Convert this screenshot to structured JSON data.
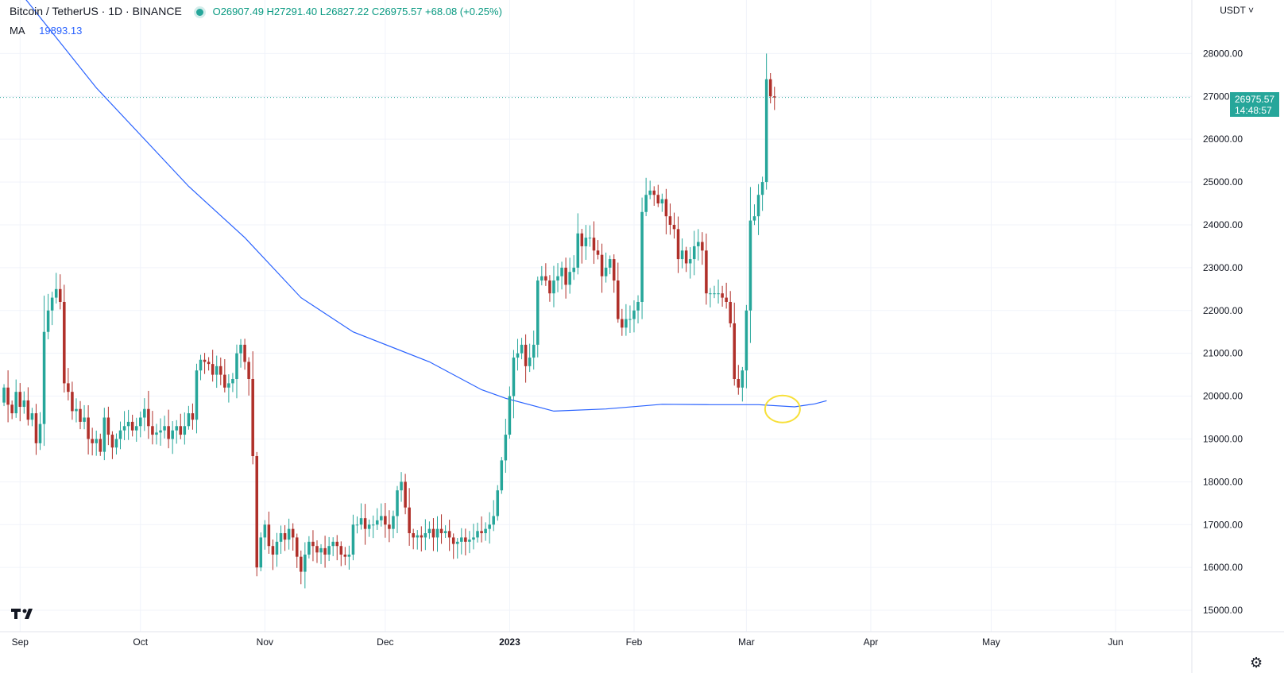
{
  "header": {
    "symbol": "Bitcoin / TetherUS · 1D · BINANCE",
    "ohlc": "O26907.49  H27291.40  L26827.22  C26975.57  +68.08  (+0.25%)"
  },
  "ma": {
    "label": "MA",
    "value": "19893.13"
  },
  "currency": "USDT ˅",
  "price_tag": {
    "price": "26975.57",
    "countdown": "14:48:57"
  },
  "colors": {
    "up": "#26a69a",
    "down": "#b0302a",
    "ma": "#2962ff",
    "highlight": "#f7e03a"
  },
  "icons": {
    "logo": "tradingview-logo-icon",
    "settings": "gear-icon"
  },
  "chart_data": {
    "type": "candlestick",
    "symbol": "BTCUSDT",
    "interval": "1D",
    "x_labels": [
      {
        "label": "Sep",
        "date": "2022-09-01"
      },
      {
        "label": "Oct",
        "date": "2022-10-01"
      },
      {
        "label": "Nov",
        "date": "2022-11-01"
      },
      {
        "label": "Dec",
        "date": "2022-12-01"
      },
      {
        "label": "2023",
        "date": "2023-01-01"
      },
      {
        "label": "Feb",
        "date": "2023-02-01"
      },
      {
        "label": "Mar",
        "date": "2023-03-01"
      },
      {
        "label": "Apr",
        "date": "2023-04-01"
      },
      {
        "label": "May",
        "date": "2023-05-01"
      },
      {
        "label": "Jun",
        "date": "2023-06-01"
      }
    ],
    "y_labels": [
      "28000.00",
      "27000.00",
      "26000.00",
      "25000.00",
      "24000.00",
      "23000.00",
      "22000.00",
      "21000.00",
      "20000.00",
      "19000.00",
      "18000.00",
      "17000.00",
      "16000.00",
      "15000.00"
    ],
    "x_range": [
      "2022-08-27",
      "2023-06-20"
    ],
    "y_range": [
      14500,
      29250
    ],
    "start_date": "2022-08-28",
    "closes": [
      20200,
      19800,
      19600,
      20100,
      19750,
      19900,
      19450,
      19600,
      18900,
      19350,
      21500,
      22000,
      22300,
      22500,
      22200,
      20300,
      20100,
      19650,
      19700,
      19400,
      19500,
      19000,
      18900,
      19000,
      18700,
      19500,
      19100,
      18800,
      19000,
      19200,
      19300,
      19400,
      19200,
      19300,
      19500,
      19700,
      19300,
      19100,
      19150,
      19200,
      19300,
      19000,
      19200,
      19300,
      19100,
      19300,
      19600,
      19450,
      20600,
      20850,
      20800,
      20750,
      20500,
      20700,
      20500,
      20200,
      20300,
      20400,
      21000,
      21200,
      20800,
      20400,
      18600,
      16000,
      16700,
      17000,
      16500,
      16300,
      16600,
      16800,
      16650,
      16900,
      16700,
      16250,
      15900,
      16300,
      16600,
      16500,
      16350,
      16450,
      16300,
      16500,
      16600,
      16500,
      16300,
      16250,
      16300,
      17000,
      17000,
      17150,
      16900,
      17000,
      17000,
      17100,
      17200,
      17000,
      16900,
      17200,
      17800,
      18000,
      17400,
      16800,
      16700,
      16750,
      16700,
      16800,
      16900,
      16700,
      16900,
      16800,
      16850,
      16700,
      16550,
      16600,
      16700,
      16600,
      16650,
      16700,
      16850,
      16800,
      16900,
      17000,
      17200,
      17800,
      18500,
      19100,
      20000,
      20900,
      21000,
      21200,
      20700,
      20900,
      21200,
      22700,
      22800,
      22700,
      22400,
      22700,
      22800,
      23000,
      22600,
      22900,
      23000,
      23800,
      23500,
      23700,
      23700,
      23400,
      23300,
      22800,
      23000,
      23200,
      22700,
      21800,
      21600,
      21800,
      21800,
      22000,
      22200,
      24300,
      24700,
      24800,
      24700,
      24500,
      24600,
      24200,
      24000,
      23900,
      23200,
      23400,
      23100,
      23200,
      23500,
      23600,
      23400,
      22400,
      22400,
      22400,
      22400,
      22300,
      22200,
      21700,
      20400,
      20200,
      20600,
      22000,
      24100,
      24200,
      24700,
      25000,
      27400,
      27000,
      26975.57
    ],
    "ma": {
      "name": "MA",
      "period": 200,
      "value": 19893.13,
      "values": [
        [
          "2022-08-28",
          29900
        ],
        [
          "2022-09-20",
          27200
        ],
        [
          "2022-10-13",
          24900
        ],
        [
          "2022-10-27",
          23700
        ],
        [
          "2022-11-10",
          22300
        ],
        [
          "2022-11-23",
          21500
        ],
        [
          "2022-12-12",
          20800
        ],
        [
          "2022-12-25",
          20150
        ],
        [
          "2022-12-31",
          19950
        ],
        [
          "2023-01-12",
          19650
        ],
        [
          "2023-01-25",
          19700
        ],
        [
          "2023-02-08",
          19810
        ],
        [
          "2023-02-20",
          19800
        ],
        [
          "2023-03-04",
          19800
        ],
        [
          "2023-03-13",
          19750
        ],
        [
          "2023-03-18",
          19820
        ],
        [
          "2023-03-21",
          19893
        ]
      ]
    },
    "highlight": {
      "shape": "circle",
      "date": "2023-03-10",
      "price": 19700
    },
    "last_price": 26975.57,
    "grid": true
  }
}
